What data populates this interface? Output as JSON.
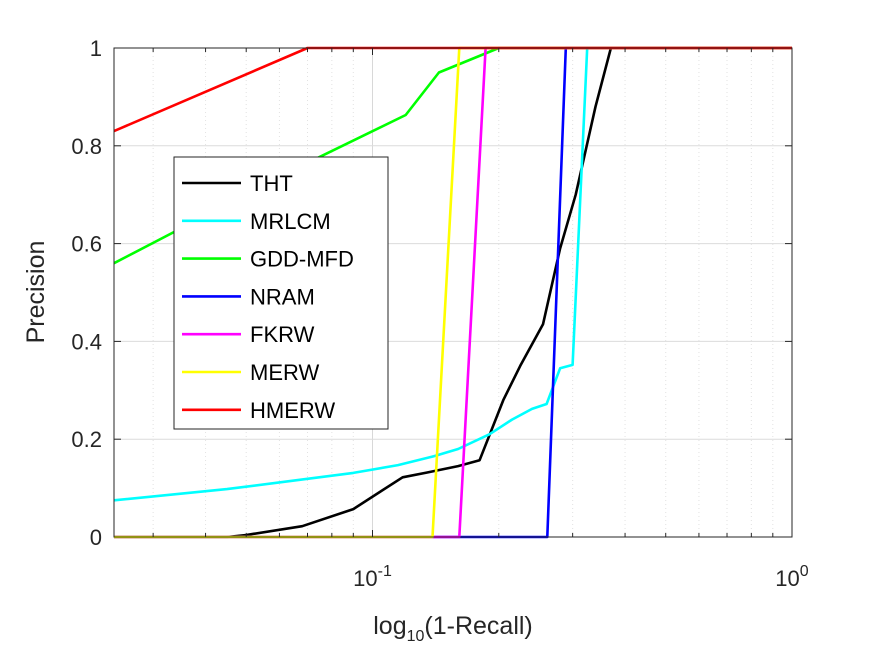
{
  "chart_data": {
    "type": "line",
    "title": "",
    "xlabel": {
      "prefix": "log",
      "sub": "10",
      "suffix": "(1-Recall)"
    },
    "ylabel": "Precision",
    "x_scale": "log",
    "xlim": [
      0.0242,
      1
    ],
    "ylim": [
      0,
      1
    ],
    "grid": true,
    "legend_position": "upper-left inside",
    "xticks": [
      {
        "value": 0.1,
        "base": "10",
        "exp": "-1"
      },
      {
        "value": 1,
        "base": "10",
        "exp": "0"
      }
    ],
    "yticks": [
      {
        "value": 0,
        "label": "0"
      },
      {
        "value": 0.2,
        "label": "0.2"
      },
      {
        "value": 0.4,
        "label": "0.4"
      },
      {
        "value": 0.6,
        "label": "0.6"
      },
      {
        "value": 0.8,
        "label": "0.8"
      },
      {
        "value": 1,
        "label": "1"
      }
    ],
    "series": [
      {
        "name": "THT",
        "color": "#000000",
        "x": [
          0.0242,
          0.045,
          0.05,
          0.068,
          0.09,
          0.118,
          0.135,
          0.16,
          0.18,
          0.205,
          0.225,
          0.255,
          0.28,
          0.305,
          0.34,
          0.37,
          1.0
        ],
        "y": [
          0,
          0,
          0.004,
          0.022,
          0.057,
          0.122,
          0.132,
          0.145,
          0.157,
          0.28,
          0.35,
          0.435,
          0.59,
          0.7,
          0.88,
          1.0,
          1.0
        ]
      },
      {
        "name": "MRLCM",
        "color": "#00ffff",
        "x": [
          0.0242,
          0.045,
          0.07,
          0.09,
          0.115,
          0.14,
          0.16,
          0.19,
          0.215,
          0.24,
          0.26,
          0.28,
          0.3,
          0.325,
          1.0
        ],
        "y": [
          0.075,
          0.098,
          0.119,
          0.131,
          0.147,
          0.165,
          0.18,
          0.21,
          0.24,
          0.262,
          0.272,
          0.345,
          0.352,
          1.0,
          1.0
        ]
      },
      {
        "name": "GDD-MFD",
        "color": "#00ff00",
        "x": [
          0.0242,
          0.068,
          0.12,
          0.144,
          0.2,
          0.21,
          1.0
        ],
        "y": [
          0.56,
          0.76,
          0.863,
          0.95,
          1.0,
          1.0,
          1.0
        ]
      },
      {
        "name": "NRAM",
        "color": "#0000ff",
        "x": [
          0.0242,
          0.261,
          0.289,
          1.0
        ],
        "y": [
          0,
          0,
          1.0,
          1.0
        ]
      },
      {
        "name": "FKRW",
        "color": "#ff00ff",
        "x": [
          0.0242,
          0.161,
          0.186,
          1.0
        ],
        "y": [
          0,
          0,
          1.0,
          1.0
        ]
      },
      {
        "name": "MERW",
        "color": "#ffff00",
        "x": [
          0.0242,
          0.139,
          0.161,
          1.0
        ],
        "y": [
          0,
          0,
          1.0,
          1.0
        ]
      },
      {
        "name": "HMERW",
        "color": "#ff0000",
        "x": [
          0.0242,
          0.07,
          1.0
        ],
        "y": [
          0.83,
          1.0,
          1.0
        ]
      }
    ]
  }
}
